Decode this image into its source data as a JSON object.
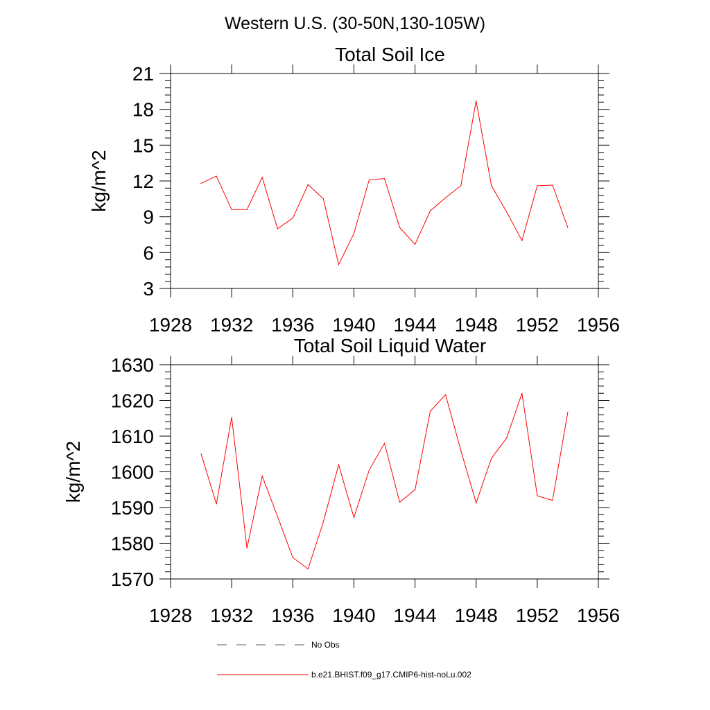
{
  "figure": {
    "suptitle": "Western U.S. (30-50N,130-105W)",
    "legend": [
      {
        "label": "No Obs",
        "color": "#5a5a7a",
        "dash": true
      },
      {
        "label": "b.e21.BHIST.f09_g17.CMIP6-hist-noLu.002",
        "color": "#ff0000",
        "dash": false
      }
    ]
  },
  "chart_data": [
    {
      "type": "line",
      "title": "Total Soil Ice",
      "xlabel": "",
      "ylabel": "kg/m^2",
      "xlim": [
        1928,
        1956
      ],
      "ylim": [
        3,
        21
      ],
      "xticks": [
        1928,
        1932,
        1936,
        1940,
        1944,
        1948,
        1952,
        1956
      ],
      "yticks": [
        3,
        6,
        9,
        12,
        15,
        18,
        21
      ],
      "grid": false,
      "x": [
        1930,
        1931,
        1932,
        1933,
        1934,
        1935,
        1936,
        1937,
        1938,
        1939,
        1940,
        1941,
        1942,
        1943,
        1944,
        1945,
        1946,
        1947,
        1948,
        1949,
        1950,
        1951,
        1952,
        1953,
        1954
      ],
      "series": [
        {
          "color": "#ff0000",
          "values": [
            11.8,
            12.4,
            9.6,
            9.6,
            12.3,
            8.0,
            8.9,
            11.7,
            10.5,
            5.0,
            7.6,
            12.1,
            12.2,
            8.1,
            6.7,
            9.5,
            10.6,
            11.6,
            18.7,
            11.6,
            9.4,
            7.0,
            11.6,
            11.65,
            8.1
          ]
        }
      ]
    },
    {
      "type": "line",
      "title": "Total Soil Liquid Water",
      "xlabel": "",
      "ylabel": "kg/m^2",
      "xlim": [
        1928,
        1956
      ],
      "ylim": [
        1570,
        1630
      ],
      "xticks": [
        1928,
        1932,
        1936,
        1940,
        1944,
        1948,
        1952,
        1956
      ],
      "yticks": [
        1570,
        1580,
        1590,
        1600,
        1610,
        1620,
        1630
      ],
      "grid": false,
      "x": [
        1930,
        1931,
        1932,
        1933,
        1934,
        1935,
        1936,
        1937,
        1938,
        1939,
        1940,
        1941,
        1942,
        1943,
        1944,
        1945,
        1946,
        1947,
        1948,
        1949,
        1950,
        1951,
        1952,
        1953,
        1954
      ],
      "series": [
        {
          "color": "#ff0000",
          "values": [
            1605,
            1591,
            1615.3,
            1578.6,
            1598.8,
            1587.5,
            1576,
            1572.8,
            1586,
            1602,
            1587.2,
            1600.5,
            1608,
            1591.5,
            1595,
            1617,
            1621.6,
            1606,
            1591.3,
            1603.8,
            1609.5,
            1622,
            1593.3,
            1592,
            1616.7
          ]
        }
      ]
    }
  ]
}
